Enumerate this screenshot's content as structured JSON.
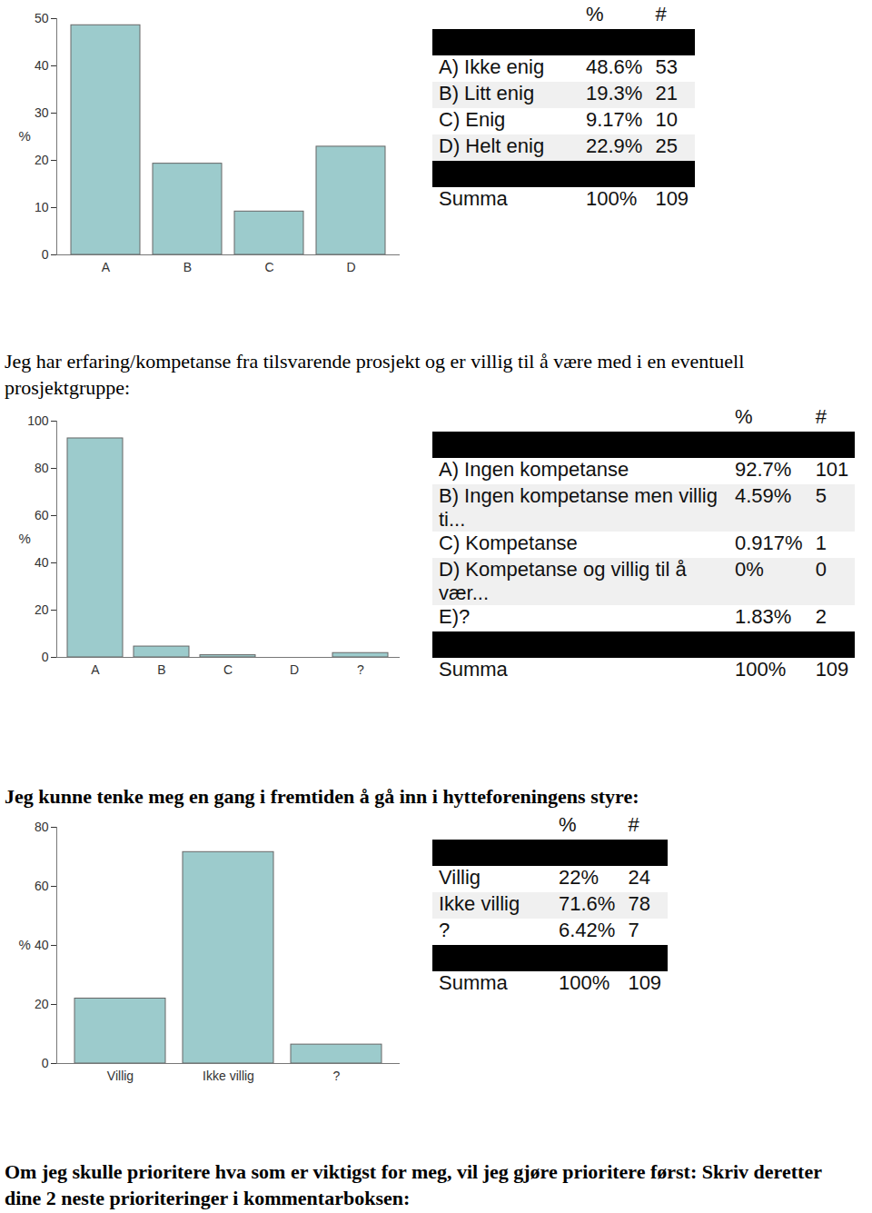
{
  "chart_data": [
    {
      "type": "bar",
      "categories": [
        "A",
        "B",
        "C",
        "D"
      ],
      "values": [
        48.6,
        19.3,
        9.17,
        22.9
      ],
      "color": "#9ccbcc",
      "ylabel": "%",
      "ylim": [
        0,
        50
      ],
      "yticks": [
        0,
        10,
        20,
        30,
        40,
        50
      ],
      "table": {
        "header": [
          "%",
          "#"
        ],
        "rows": [
          [
            "A) Ikke enig",
            "48.6%",
            53
          ],
          [
            "B) Litt enig",
            "19.3%",
            21
          ],
          [
            "C) Enig",
            "9.17%",
            10
          ],
          [
            "D) Helt enig",
            "22.9%",
            25
          ]
        ],
        "total": [
          "Summa",
          "100%",
          109
        ]
      }
    },
    {
      "type": "bar",
      "title": "Jeg har erfaring/kompetanse fra tilsvarende prosjekt og er villig til å være med i en eventuell prosjektgruppe:",
      "categories": [
        "A",
        "B",
        "C",
        "D",
        "?"
      ],
      "values": [
        92.7,
        4.59,
        0.917,
        0,
        1.83
      ],
      "color": "#9ccbcc",
      "ylabel": "%",
      "ylim": [
        0,
        100
      ],
      "yticks": [
        0,
        20,
        40,
        60,
        80,
        100
      ],
      "table": {
        "header": [
          "%",
          "#"
        ],
        "rows": [
          [
            "A) Ingen kompetanse",
            "92.7%",
            101
          ],
          [
            "B) Ingen kompetanse men villig ti...",
            "4.59%",
            5
          ],
          [
            "C) Kompetanse",
            "0.917%",
            1
          ],
          [
            "D) Kompetanse og villig til å vær...",
            "0%",
            0
          ],
          [
            "E)?",
            "1.83%",
            2
          ]
        ],
        "total": [
          "Summa",
          "100%",
          109
        ]
      }
    },
    {
      "type": "bar",
      "title": "Jeg kunne tenke meg en gang i fremtiden å gå inn i hytteforeningens styre:",
      "categories": [
        "Villig",
        "Ikke villig",
        "?"
      ],
      "values": [
        22,
        71.6,
        6.42
      ],
      "color": "#9ccbcc",
      "ylabel": "%",
      "ylim": [
        0,
        80
      ],
      "yticks": [
        0,
        20,
        40,
        60,
        80
      ],
      "table": {
        "header": [
          "%",
          "#"
        ],
        "rows": [
          [
            "Villig",
            "22%",
            24
          ],
          [
            "Ikke villig",
            "71.6%",
            78
          ],
          [
            "?",
            "6.42%",
            7
          ]
        ],
        "total": [
          "Summa",
          "100%",
          109
        ]
      }
    }
  ],
  "closing_text": "Om jeg skulle prioritere hva som er viktigst for meg, vil jeg gjøre prioritere først: Skriv deretter dine 2 neste prioriteringer i kommentarboksen:"
}
